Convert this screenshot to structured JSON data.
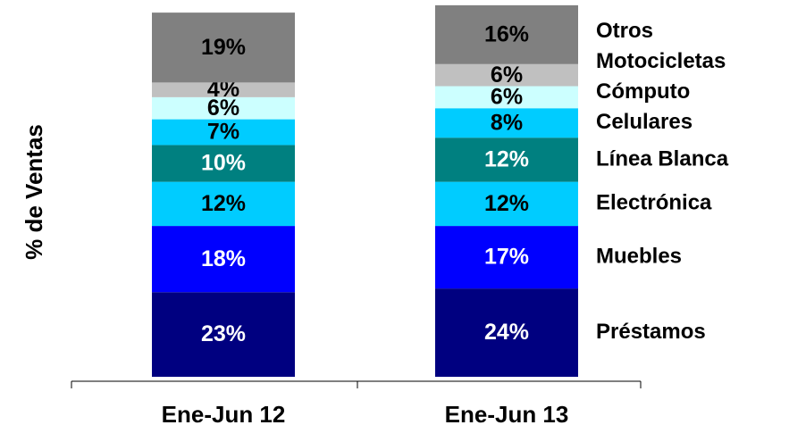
{
  "chart_data": {
    "type": "stacked-bar",
    "y_label": "% de Ventas",
    "categories": [
      "Ene-Jun 12",
      "Ene-Jun 13"
    ],
    "ylim": [
      0,
      100
    ],
    "series": [
      {
        "name": "Préstamos",
        "color": "#000080",
        "values": [
          23,
          24
        ],
        "value_labels": [
          "23%",
          "24%"
        ]
      },
      {
        "name": "Muebles",
        "color": "#0000ff",
        "values": [
          18,
          17
        ],
        "value_labels": [
          "18%",
          "17%"
        ]
      },
      {
        "name": "Electrónica",
        "color": "#00ccff",
        "values": [
          12,
          12
        ],
        "value_labels": [
          "12%",
          "12%"
        ]
      },
      {
        "name": "Línea Blanca",
        "color": "#008080",
        "values": [
          10,
          12
        ],
        "value_labels": [
          "10%",
          "12%"
        ]
      },
      {
        "name": "Celulares",
        "color": "#00ccff",
        "values": [
          7,
          8
        ],
        "value_labels": [
          "7%",
          "8%"
        ]
      },
      {
        "name": "Cómputo",
        "color": "#ccffff",
        "values": [
          6,
          6
        ],
        "value_labels": [
          "6%",
          "6%"
        ]
      },
      {
        "name": "Motocicletas",
        "color": "#c0c0c0",
        "values": [
          4,
          6
        ],
        "value_labels": [
          "4%",
          "6%"
        ]
      },
      {
        "name": "Otros",
        "color": "#808080",
        "values": [
          19,
          16
        ],
        "value_labels": [
          "19%",
          "16%"
        ]
      }
    ]
  }
}
